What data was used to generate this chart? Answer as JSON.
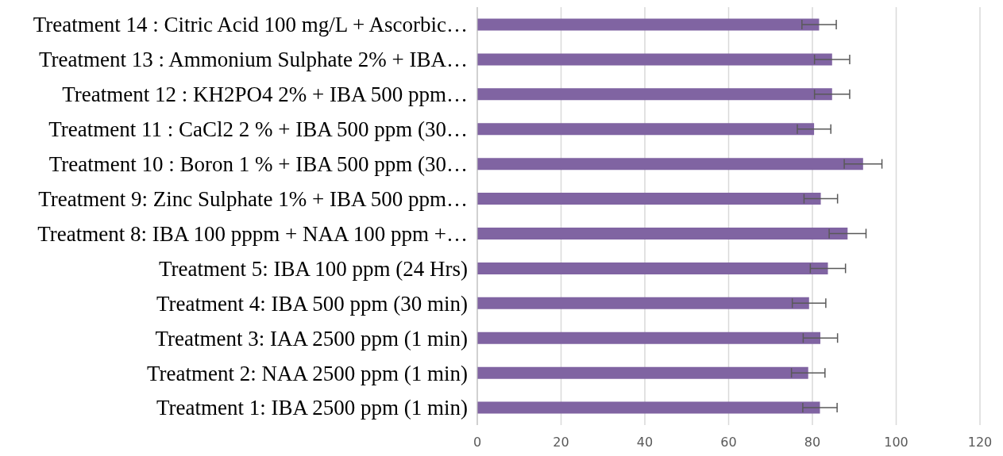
{
  "chart_data": {
    "type": "bar",
    "orientation": "horizontal",
    "categories": [
      "Treatment 14 : Citric Acid 100 mg/L + Ascorbic…",
      "Treatment 13 :  Ammonium Sulphate 2% + IBA…",
      "Treatment 12 :  KH2PO4 2% + IBA 500 ppm…",
      "Treatment 11 :  CaCl2 2 % + IBA 500 ppm (30…",
      "Treatment 10 : Boron 1 % + IBA 500 ppm (30…",
      "Treatment 9: Zinc Sulphate 1% + IBA 500 ppm…",
      "Treatment 8: IBA 100 pppm + NAA 100 ppm +…",
      "Treatment 5: IBA 100 ppm (24 Hrs)",
      "Treatment 4: IBA 500 ppm (30 min)",
      "Treatment 3: IAA 2500 ppm (1 min)",
      "Treatment 2: NAA 2500 ppm (1 min)",
      "Treatment 1: IBA 2500 ppm (1 min)"
    ],
    "values": [
      81.6,
      84.7,
      84.7,
      80.4,
      92.1,
      82,
      88.4,
      83.7,
      79.2,
      81.9,
      79,
      81.8
    ],
    "errors": [
      4.1,
      4.2,
      4.2,
      4,
      4.5,
      4,
      4.4,
      4.2,
      4,
      4.1,
      4,
      4.1
    ],
    "color": "#8064a2",
    "xlim": [
      0,
      120
    ],
    "xticks": [
      0,
      20,
      40,
      60,
      80,
      100,
      120
    ],
    "grid": "x"
  }
}
